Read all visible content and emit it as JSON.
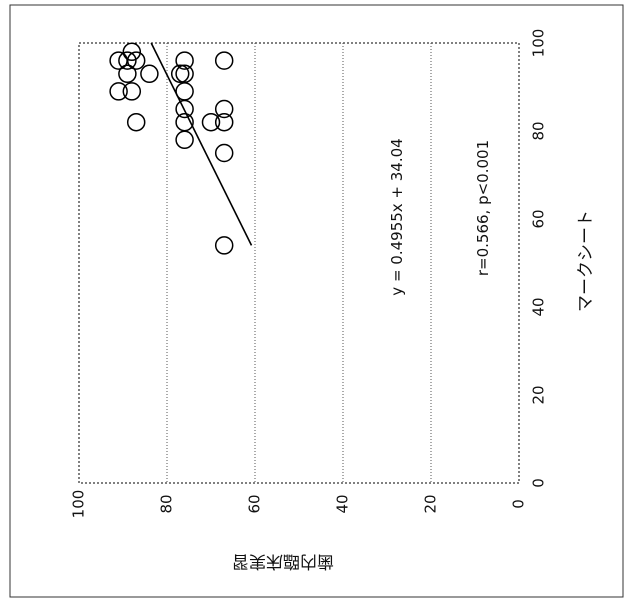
{
  "chart_data": {
    "type": "scatter",
    "rotation": "rotated 90 degrees clockwise (x axis on the right, y axis at the bottom)",
    "xlabel": "マークシート",
    "ylabel": "歯内臨床実習",
    "xlim": [
      0,
      100
    ],
    "ylim": [
      0,
      100
    ],
    "xticks": [
      "0",
      "20",
      "40",
      "60",
      "80",
      "100"
    ],
    "yticks": [
      "0",
      "20",
      "40",
      "60",
      "80",
      "100"
    ],
    "grid": "horizontal gridlines at y = 20, 40, 60, 80 (dotted)",
    "points": [
      {
        "x": 98,
        "y": 88
      },
      {
        "x": 96,
        "y": 91
      },
      {
        "x": 96,
        "y": 89
      },
      {
        "x": 96,
        "y": 87
      },
      {
        "x": 96,
        "y": 76
      },
      {
        "x": 96,
        "y": 67
      },
      {
        "x": 93,
        "y": 89
      },
      {
        "x": 93,
        "y": 84
      },
      {
        "x": 93,
        "y": 77
      },
      {
        "x": 93,
        "y": 76
      },
      {
        "x": 89,
        "y": 91
      },
      {
        "x": 89,
        "y": 88
      },
      {
        "x": 89,
        "y": 76
      },
      {
        "x": 85,
        "y": 76
      },
      {
        "x": 85,
        "y": 67
      },
      {
        "x": 82,
        "y": 87
      },
      {
        "x": 82,
        "y": 76
      },
      {
        "x": 82,
        "y": 70
      },
      {
        "x": 82,
        "y": 67
      },
      {
        "x": 78,
        "y": 76
      },
      {
        "x": 75,
        "y": 67
      },
      {
        "x": 54,
        "y": 67
      }
    ],
    "fit_line": {
      "slope": 0.4955,
      "intercept": 34.04,
      "x_range": [
        54,
        100
      ]
    },
    "annotations": [
      {
        "text": "y = 0.4955x + 34.04"
      },
      {
        "text": "r=0.566, p<0.001"
      }
    ]
  }
}
